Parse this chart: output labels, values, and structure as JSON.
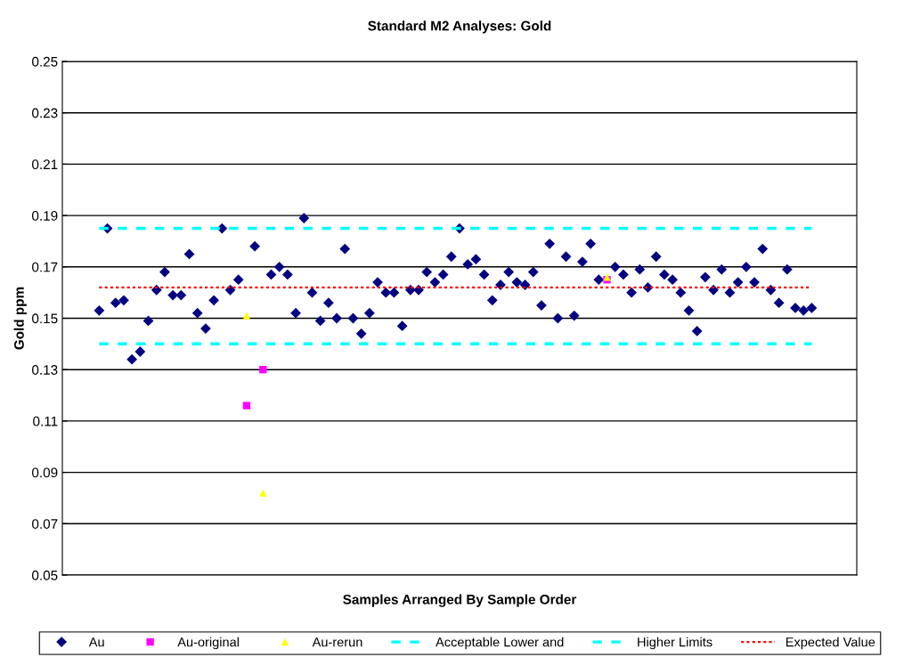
{
  "chart_data": {
    "type": "scatter",
    "title": "Standard M2 Analyses: Gold",
    "xlabel": "Samples Arranged By Sample Order",
    "ylabel": "Gold ppm",
    "categories": [
      null,
      null,
      null,
      null,
      null,
      null,
      null,
      null,
      null,
      null,
      null,
      null,
      null,
      null,
      null,
      null,
      null,
      null,
      null,
      null,
      null,
      null,
      null,
      null,
      null,
      null,
      null,
      null,
      null,
      null,
      null,
      null,
      null,
      null,
      null,
      null,
      null,
      null,
      null,
      null,
      null,
      null,
      null,
      null,
      null,
      null,
      null,
      null,
      null,
      null,
      null,
      null,
      null,
      null,
      null,
      null,
      null,
      null,
      null,
      null,
      null,
      null,
      null,
      null,
      null,
      null,
      null,
      null,
      null,
      null,
      null,
      null,
      null,
      null,
      null,
      null,
      null,
      null,
      null,
      null,
      null,
      null,
      null,
      null,
      null,
      null,
      null,
      null
    ],
    "ylim": [
      0.05,
      0.25
    ],
    "yticks": [
      0.05,
      0.07,
      0.09,
      0.11,
      0.13,
      0.15,
      0.17,
      0.19,
      0.21,
      0.23,
      0.25
    ],
    "grid": "y",
    "legend": "bottom",
    "series": [
      {
        "name": "Au",
        "marker": "diamond",
        "color": "#000080",
        "values": [
          0.153,
          0.185,
          0.156,
          0.157,
          0.134,
          0.137,
          0.149,
          0.161,
          0.168,
          0.159,
          0.159,
          0.175,
          0.152,
          0.146,
          0.157,
          0.185,
          0.161,
          0.165,
          null,
          0.178,
          null,
          0.167,
          0.17,
          0.167,
          0.152,
          0.189,
          0.16,
          0.149,
          0.156,
          0.15,
          0.177,
          0.15,
          0.144,
          0.152,
          0.164,
          0.16,
          0.16,
          0.147,
          0.161,
          0.161,
          0.168,
          0.164,
          0.167,
          0.174,
          0.185,
          0.171,
          0.173,
          0.167,
          0.157,
          0.163,
          0.168,
          0.164,
          0.163,
          0.168,
          0.155,
          0.179,
          0.15,
          0.174,
          0.151,
          0.172,
          0.179,
          0.165,
          null,
          0.17,
          0.167,
          0.16,
          0.169,
          0.162,
          0.174,
          0.167,
          0.165,
          0.16,
          0.153,
          0.145,
          0.166,
          0.161,
          0.169,
          0.16,
          0.164,
          0.17,
          0.164,
          0.177,
          0.161,
          0.156,
          0.169,
          0.154,
          0.153,
          0.154
        ]
      },
      {
        "name": "Au-original",
        "marker": "square",
        "color": "#ff00ff",
        "values": [
          null,
          null,
          null,
          null,
          null,
          null,
          null,
          null,
          null,
          null,
          null,
          null,
          null,
          null,
          null,
          null,
          null,
          null,
          0.116,
          null,
          0.13,
          null,
          null,
          null,
          null,
          null,
          null,
          null,
          null,
          null,
          null,
          null,
          null,
          null,
          null,
          null,
          null,
          null,
          null,
          null,
          null,
          null,
          null,
          null,
          null,
          null,
          null,
          null,
          null,
          null,
          null,
          null,
          null,
          null,
          null,
          null,
          null,
          null,
          null,
          null,
          null,
          null,
          0.165,
          null,
          null,
          null,
          null,
          null,
          null,
          null,
          null,
          null,
          null,
          null,
          null,
          null,
          null,
          null,
          null,
          null,
          null,
          null,
          null,
          null,
          null,
          null,
          null,
          null
        ]
      },
      {
        "name": "Au-rerun",
        "marker": "triangle",
        "color": "#ffff00",
        "values": [
          null,
          null,
          null,
          null,
          null,
          null,
          null,
          null,
          null,
          null,
          null,
          null,
          null,
          null,
          null,
          null,
          null,
          null,
          0.151,
          null,
          0.082,
          null,
          null,
          null,
          null,
          null,
          null,
          null,
          null,
          null,
          null,
          null,
          null,
          null,
          null,
          null,
          null,
          null,
          null,
          null,
          null,
          null,
          null,
          null,
          null,
          null,
          null,
          null,
          null,
          null,
          null,
          null,
          null,
          null,
          null,
          null,
          null,
          null,
          null,
          null,
          null,
          null,
          0.166,
          null,
          null,
          null,
          null,
          null,
          null,
          null,
          null,
          null,
          null,
          null,
          null,
          null,
          null,
          null,
          null,
          null,
          null,
          null,
          null,
          null,
          null,
          null,
          null,
          null
        ]
      },
      {
        "name": "Acceptable Lower and",
        "type": "line",
        "line_style": "dashed",
        "color": "#00ffff",
        "values": [
          0.14,
          0.14,
          0.14,
          0.14,
          0.14,
          0.14,
          0.14,
          0.14,
          0.14,
          0.14,
          0.14,
          0.14,
          0.14,
          0.14,
          0.14,
          0.14,
          0.14,
          0.14,
          0.14,
          0.14,
          0.14,
          0.14,
          0.14,
          0.14,
          0.14,
          0.14,
          0.14,
          0.14,
          0.14,
          0.14,
          0.14,
          0.14,
          0.14,
          0.14,
          0.14,
          0.14,
          0.14,
          0.14,
          0.14,
          0.14,
          0.14,
          0.14,
          0.14,
          0.14,
          0.14,
          0.14,
          0.14,
          0.14,
          0.14,
          0.14,
          0.14,
          0.14,
          0.14,
          0.14,
          0.14,
          0.14,
          0.14,
          0.14,
          0.14,
          0.14,
          0.14,
          0.14,
          0.14,
          0.14,
          0.14,
          0.14,
          0.14,
          0.14,
          0.14,
          0.14,
          0.14,
          0.14,
          0.14,
          0.14,
          0.14,
          0.14,
          0.14,
          0.14,
          0.14,
          0.14,
          0.14,
          0.14,
          0.14,
          0.14,
          0.14,
          0.14,
          0.14,
          0.14
        ]
      },
      {
        "name": "Higher Limits",
        "type": "line",
        "line_style": "dashed",
        "color": "#00ffff",
        "values": [
          0.185,
          0.185,
          0.185,
          0.185,
          0.185,
          0.185,
          0.185,
          0.185,
          0.185,
          0.185,
          0.185,
          0.185,
          0.185,
          0.185,
          0.185,
          0.185,
          0.185,
          0.185,
          0.185,
          0.185,
          0.185,
          0.185,
          0.185,
          0.185,
          0.185,
          0.185,
          0.185,
          0.185,
          0.185,
          0.185,
          0.185,
          0.185,
          0.185,
          0.185,
          0.185,
          0.185,
          0.185,
          0.185,
          0.185,
          0.185,
          0.185,
          0.185,
          0.185,
          0.185,
          0.185,
          0.185,
          0.185,
          0.185,
          0.185,
          0.185,
          0.185,
          0.185,
          0.185,
          0.185,
          0.185,
          0.185,
          0.185,
          0.185,
          0.185,
          0.185,
          0.185,
          0.185,
          0.185,
          0.185,
          0.185,
          0.185,
          0.185,
          0.185,
          0.185,
          0.185,
          0.185,
          0.185,
          0.185,
          0.185,
          0.185,
          0.185,
          0.185,
          0.185,
          0.185,
          0.185,
          0.185,
          0.185,
          0.185,
          0.185,
          0.185,
          0.185,
          0.185,
          0.185
        ]
      },
      {
        "name": "Expected Value",
        "type": "line",
        "line_style": "dotted",
        "color": "#ff0000",
        "values": [
          0.162,
          0.162,
          0.162,
          0.162,
          0.162,
          0.162,
          0.162,
          0.162,
          0.162,
          0.162,
          0.162,
          0.162,
          0.162,
          0.162,
          0.162,
          0.162,
          0.162,
          0.162,
          0.162,
          0.162,
          0.162,
          0.162,
          0.162,
          0.162,
          0.162,
          0.162,
          0.162,
          0.162,
          0.162,
          0.162,
          0.162,
          0.162,
          0.162,
          0.162,
          0.162,
          0.162,
          0.162,
          0.162,
          0.162,
          0.162,
          0.162,
          0.162,
          0.162,
          0.162,
          0.162,
          0.162,
          0.162,
          0.162,
          0.162,
          0.162,
          0.162,
          0.162,
          0.162,
          0.162,
          0.162,
          0.162,
          0.162,
          0.162,
          0.162,
          0.162,
          0.162,
          0.162,
          0.162,
          0.162,
          0.162,
          0.162,
          0.162,
          0.162,
          0.162,
          0.162,
          0.162,
          0.162,
          0.162,
          0.162,
          0.162,
          0.162,
          0.162,
          0.162,
          0.162,
          0.162,
          0.162,
          0.162,
          0.162,
          0.162,
          0.162,
          0.162,
          0.162,
          0.162
        ]
      }
    ]
  }
}
